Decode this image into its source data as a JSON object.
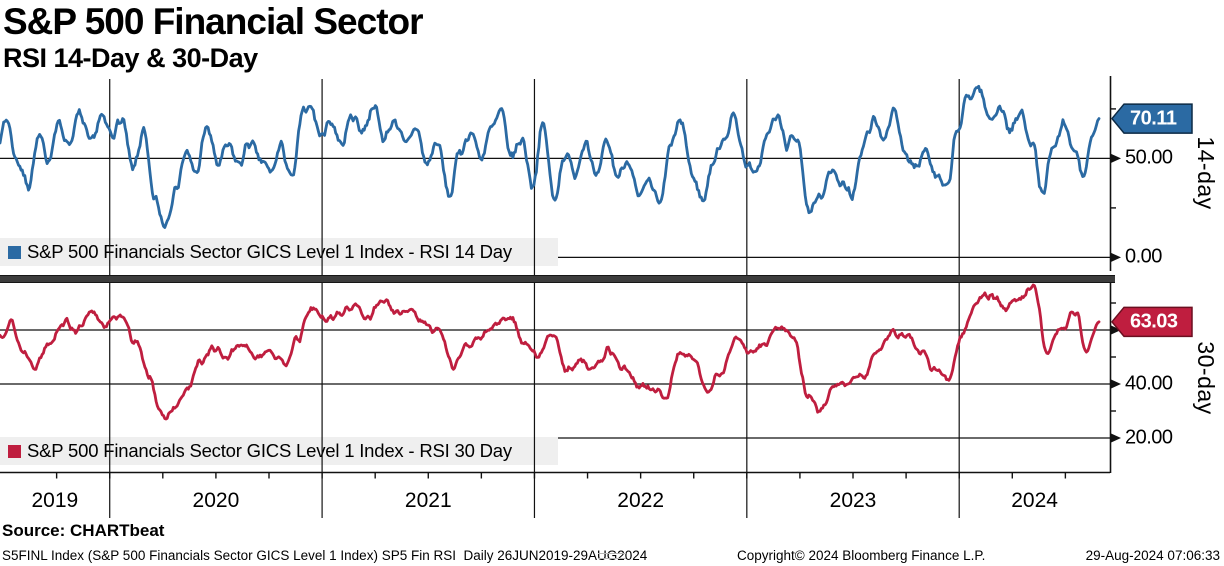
{
  "header": {
    "title": "S&P 500 Financial Sector",
    "subtitle": "RSI 14-Day & 30-Day"
  },
  "footer": {
    "source": "Source: CHARTbeat",
    "info": "S5FINL Index (S&P 500 Financials Sector GICS Level 1 Index) SP5 Fin RSI  Daily 26JUN2019-29AUG2024",
    "copyright": "Copyright© 2024 Bloomberg Finance L.P.",
    "timestamp": "29-Aug-2024 07:06:33"
  },
  "chart_data": {
    "type": "line",
    "title": "S&P 500 Financial Sector",
    "subtitle": "RSI 14-Day & 30-Day",
    "x_axis": {
      "start": "26JUN2019",
      "end": "29AUG2024",
      "years": [
        "2019",
        "2020",
        "2021",
        "2022",
        "2023",
        "2024"
      ],
      "year_boundaries_month": [
        6.2,
        18.2,
        30.2,
        42.2,
        54.2
      ],
      "total_months": 62.1,
      "grid": true
    },
    "panels": [
      {
        "id": "rsi14",
        "axis_title": "14-day",
        "legend": "S&P 500 Financials Sector GICS Level 1 Index - RSI 14 Day",
        "color": "#2b6aa3",
        "flag_border": "#0d2a45",
        "last_value": 70.11,
        "last_value_label": "70.11",
        "ylim": [
          0,
          100
        ],
        "yticks": [
          {
            "value": 50,
            "label": "50.00"
          },
          {
            "value": 0,
            "label": "0.00"
          }
        ],
        "minor_yticks": [
          25,
          75
        ],
        "noise_amp": 4.5,
        "noise_seed": 7,
        "anchors": [
          [
            0,
            62
          ],
          [
            0.4,
            70
          ],
          [
            0.9,
            50
          ],
          [
            1.6,
            37
          ],
          [
            2.2,
            60
          ],
          [
            2.7,
            50
          ],
          [
            3.3,
            67
          ],
          [
            3.9,
            58
          ],
          [
            4.5,
            72
          ],
          [
            5.1,
            57
          ],
          [
            5.7,
            70
          ],
          [
            6.3,
            63
          ],
          [
            6.9,
            69
          ],
          [
            7.5,
            44
          ],
          [
            8.1,
            63
          ],
          [
            8.7,
            30
          ],
          [
            9.3,
            17
          ],
          [
            9.9,
            34
          ],
          [
            10.5,
            52
          ],
          [
            11.1,
            43
          ],
          [
            11.7,
            66
          ],
          [
            12.3,
            47
          ],
          [
            12.9,
            56
          ],
          [
            13.5,
            47
          ],
          [
            14.1,
            58
          ],
          [
            14.7,
            49
          ],
          [
            15.3,
            43
          ],
          [
            15.9,
            56
          ],
          [
            16.5,
            39
          ],
          [
            17.1,
            72
          ],
          [
            17.5,
            78
          ],
          [
            18.1,
            62
          ],
          [
            18.7,
            69
          ],
          [
            19.3,
            57
          ],
          [
            19.9,
            72
          ],
          [
            20.5,
            64
          ],
          [
            21.1,
            77
          ],
          [
            21.7,
            60
          ],
          [
            22.3,
            70
          ],
          [
            22.9,
            56
          ],
          [
            23.5,
            66
          ],
          [
            24.1,
            47
          ],
          [
            24.7,
            58
          ],
          [
            25.4,
            31
          ],
          [
            26,
            54
          ],
          [
            26.6,
            63
          ],
          [
            27.2,
            51
          ],
          [
            27.8,
            65
          ],
          [
            28.3,
            73
          ],
          [
            28.9,
            51
          ],
          [
            29.5,
            60
          ],
          [
            30.1,
            37
          ],
          [
            30.7,
            67
          ],
          [
            31.3,
            29
          ],
          [
            31.9,
            52
          ],
          [
            32.5,
            43
          ],
          [
            33.1,
            60
          ],
          [
            33.7,
            39
          ],
          [
            34.3,
            58
          ],
          [
            34.9,
            41
          ],
          [
            35.5,
            50
          ],
          [
            36.1,
            29
          ],
          [
            36.7,
            38
          ],
          [
            37.3,
            26
          ],
          [
            37.9,
            57
          ],
          [
            38.5,
            69
          ],
          [
            39.1,
            42
          ],
          [
            39.7,
            29
          ],
          [
            40.3,
            48
          ],
          [
            40.9,
            61
          ],
          [
            41.5,
            71
          ],
          [
            42.1,
            49
          ],
          [
            42.7,
            41
          ],
          [
            43.3,
            61
          ],
          [
            43.9,
            71
          ],
          [
            44.5,
            57
          ],
          [
            45.1,
            61
          ],
          [
            45.7,
            21
          ],
          [
            46.3,
            29
          ],
          [
            46.9,
            45
          ],
          [
            47.5,
            37
          ],
          [
            48.1,
            31
          ],
          [
            48.7,
            54
          ],
          [
            49.3,
            69
          ],
          [
            49.9,
            61
          ],
          [
            50.5,
            73
          ],
          [
            51.1,
            54
          ],
          [
            51.7,
            47
          ],
          [
            52.3,
            55
          ],
          [
            52.9,
            40
          ],
          [
            53.5,
            34
          ],
          [
            54.1,
            64
          ],
          [
            54.7,
            81
          ],
          [
            55.3,
            86
          ],
          [
            55.9,
            70
          ],
          [
            56.5,
            76
          ],
          [
            57.1,
            64
          ],
          [
            57.7,
            73
          ],
          [
            58.3,
            59
          ],
          [
            58.9,
            32
          ],
          [
            59.5,
            54
          ],
          [
            60.1,
            66
          ],
          [
            60.7,
            54
          ],
          [
            61.3,
            41
          ],
          [
            61.7,
            60
          ],
          [
            62.1,
            70.11
          ]
        ]
      },
      {
        "id": "rsi30",
        "axis_title": "30-day",
        "legend": "S&P 500 Financials Sector GICS Level 1 Index - RSI 30 Day",
        "color": "#bf1e3f",
        "flag_border": "#6b0f20",
        "last_value": 63.03,
        "last_value_label": "63.03",
        "ylim": [
          10,
          90
        ],
        "yticks": [
          {
            "value": 60,
            "label": "60.00"
          },
          {
            "value": 40,
            "label": "40.00"
          },
          {
            "value": 20,
            "label": "20.00"
          }
        ],
        "minor_yticks": [
          70,
          50,
          30
        ],
        "noise_amp": 2.2,
        "noise_seed": 13,
        "anchors": [
          [
            0,
            58
          ],
          [
            0.6,
            63
          ],
          [
            1.3,
            52
          ],
          [
            2,
            47
          ],
          [
            2.8,
            56
          ],
          [
            3.6,
            63
          ],
          [
            4.4,
            60
          ],
          [
            5.2,
            66
          ],
          [
            6,
            62
          ],
          [
            6.8,
            66
          ],
          [
            7.6,
            56
          ],
          [
            8.4,
            44
          ],
          [
            9.2,
            27
          ],
          [
            9.9,
            31
          ],
          [
            10.6,
            38
          ],
          [
            11.3,
            48
          ],
          [
            12,
            53
          ],
          [
            12.8,
            50
          ],
          [
            13.6,
            55
          ],
          [
            14.4,
            50
          ],
          [
            15.2,
            53
          ],
          [
            16,
            47
          ],
          [
            16.8,
            56
          ],
          [
            17.6,
            68
          ],
          [
            18.4,
            64
          ],
          [
            19.2,
            66
          ],
          [
            20,
            69
          ],
          [
            20.8,
            65
          ],
          [
            21.6,
            71
          ],
          [
            22.4,
            66
          ],
          [
            23.2,
            68
          ],
          [
            24,
            62
          ],
          [
            24.8,
            60
          ],
          [
            25.6,
            47
          ],
          [
            26.4,
            54
          ],
          [
            27.2,
            57
          ],
          [
            28,
            62
          ],
          [
            28.8,
            65
          ],
          [
            29.6,
            56
          ],
          [
            30.4,
            50
          ],
          [
            31.2,
            59
          ],
          [
            32,
            45
          ],
          [
            32.8,
            49
          ],
          [
            33.6,
            46
          ],
          [
            34.4,
            53
          ],
          [
            35.2,
            46
          ],
          [
            36,
            40
          ],
          [
            36.8,
            38
          ],
          [
            37.6,
            35
          ],
          [
            38.4,
            52
          ],
          [
            39.2,
            49
          ],
          [
            40,
            38
          ],
          [
            40.8,
            45
          ],
          [
            41.6,
            57
          ],
          [
            42.4,
            51
          ],
          [
            43.2,
            55
          ],
          [
            44,
            61
          ],
          [
            44.8,
            58
          ],
          [
            45.6,
            36
          ],
          [
            46.4,
            30
          ],
          [
            47.2,
            39
          ],
          [
            48,
            41
          ],
          [
            48.8,
            43
          ],
          [
            49.6,
            53
          ],
          [
            50.4,
            59
          ],
          [
            51.2,
            58
          ],
          [
            52,
            52
          ],
          [
            52.8,
            45
          ],
          [
            53.6,
            42
          ],
          [
            54.4,
            59
          ],
          [
            55.2,
            71
          ],
          [
            56,
            73
          ],
          [
            56.8,
            68
          ],
          [
            57.6,
            72
          ],
          [
            58.4,
            76
          ],
          [
            59.2,
            52
          ],
          [
            60,
            61
          ],
          [
            60.8,
            67
          ],
          [
            61.4,
            52
          ],
          [
            62.1,
            63.03
          ]
        ]
      }
    ]
  }
}
